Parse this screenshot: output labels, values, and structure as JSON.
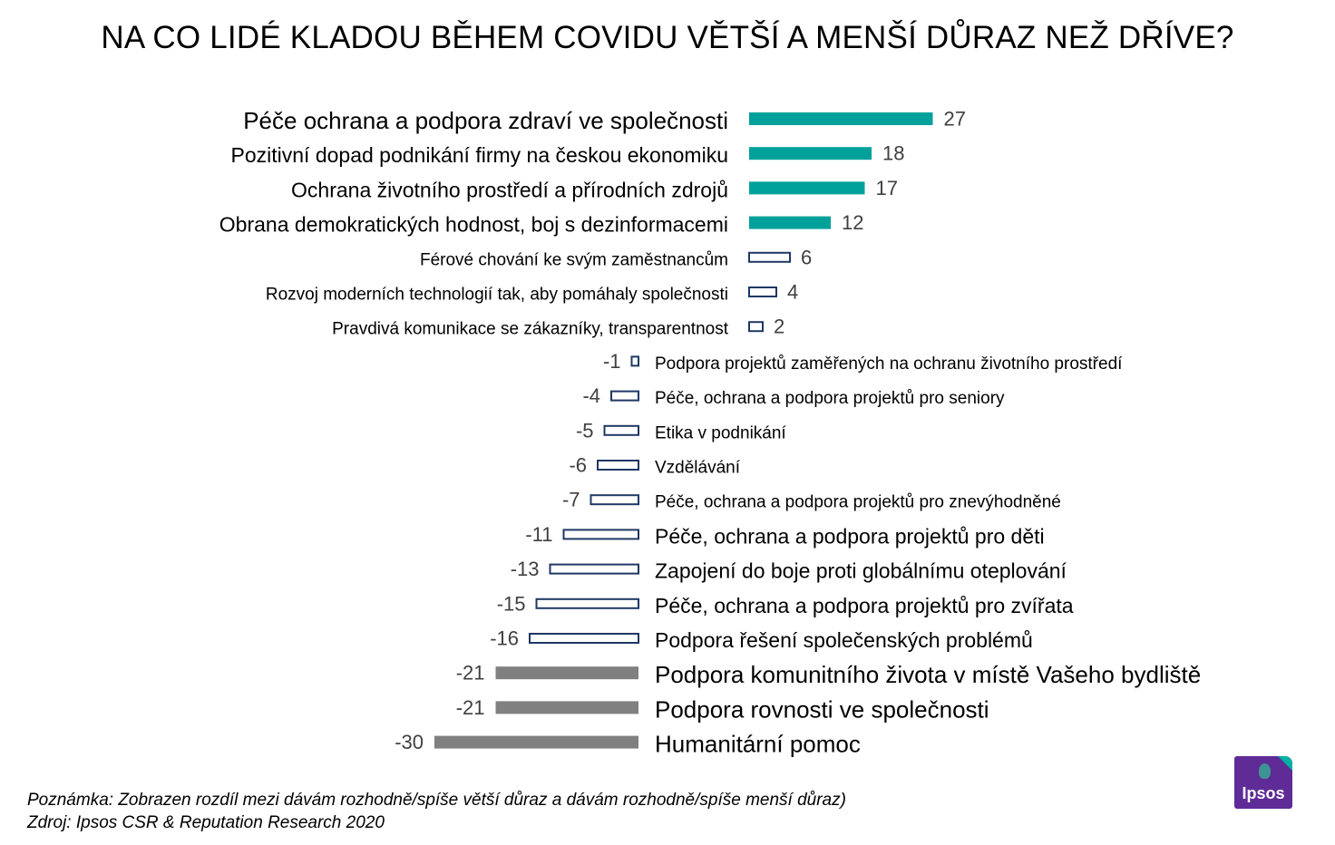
{
  "title": "NA CO LIDÉ KLADOU BĚHEM COVIDU VĚTŠÍ A MENŠÍ DŮRAZ NEŽ DŘÍVE?",
  "colors": {
    "teal": "#00A19A",
    "navy": "#1f3864",
    "gray": "#808080",
    "value_text": "#404040",
    "logo_purple": "#5e2b97",
    "logo_teal": "#00b19f"
  },
  "chart_data": {
    "type": "bar",
    "orientation": "horizontal",
    "categories": [
      "Péče ochrana a podpora zdraví ve společnosti",
      "Pozitivní dopad podnikání firmy na českou ekonomiku",
      "Ochrana životního prostředí a přírodních zdrojů",
      "Obrana demokratických hodnost, boj s dezinformacemi",
      "Férové chování ke svým zaměstnancům",
      "Rozvoj moderních technologií tak, aby pomáhaly společnosti",
      "Pravdivá komunikace se zákazníky, transparentnost",
      "Podpora projektů zaměřených na ochranu životního prostředí",
      "Péče, ochrana a podpora projektů pro seniory",
      "Etika v podnikání",
      "Vzdělávání",
      "Péče, ochrana a podpora projektů pro znevýhodněné",
      "Péče, ochrana a podpora projektů pro děti",
      "Zapojení do boje proti globálnímu oteplování",
      "Péče, ochrana a podpora projektů pro zvířata",
      "Podpora řešení společenských problémů",
      "Podpora komunitního života v místě Vašeho bydliště",
      "Podpora rovnosti ve společnosti",
      "Humanitární pomoc"
    ],
    "values": [
      27,
      18,
      17,
      12,
      6,
      4,
      2,
      -1,
      -4,
      -5,
      -6,
      -7,
      -11,
      -13,
      -15,
      -16,
      -21,
      -21,
      -30
    ],
    "value_labels": [
      "27",
      "18",
      "17",
      "12",
      "6",
      "4",
      "2",
      "-1",
      "-4",
      "-5",
      "-6",
      "-7",
      "-11",
      "-13",
      "-15",
      "-16",
      "-21",
      "-21",
      "-30"
    ],
    "styles": [
      "solid-teal",
      "solid-teal",
      "solid-teal",
      "solid-teal",
      "outline-navy",
      "outline-navy",
      "outline-navy",
      "outline-navy",
      "outline-navy",
      "outline-navy",
      "outline-navy",
      "outline-navy",
      "outline-navy",
      "outline-navy",
      "outline-navy",
      "outline-navy",
      "solid-gray",
      "solid-gray",
      "solid-gray"
    ],
    "emphasis": [
      "large",
      "medium",
      "medium",
      "medium",
      "small",
      "small",
      "small",
      "small",
      "small",
      "small",
      "small",
      "small",
      "medium",
      "medium",
      "medium",
      "medium",
      "large",
      "large",
      "large"
    ],
    "grid": false,
    "legend": "none"
  },
  "notes": {
    "line1": "Poznámka: Zobrazen rozdíl mezi dávám rozhodně/spíše větší důraz a dávám rozhodně/spíše menší důraz)",
    "line2": "Zdroj: Ipsos CSR & Reputation Research 2020"
  },
  "logo": {
    "text": "Ipsos"
  }
}
